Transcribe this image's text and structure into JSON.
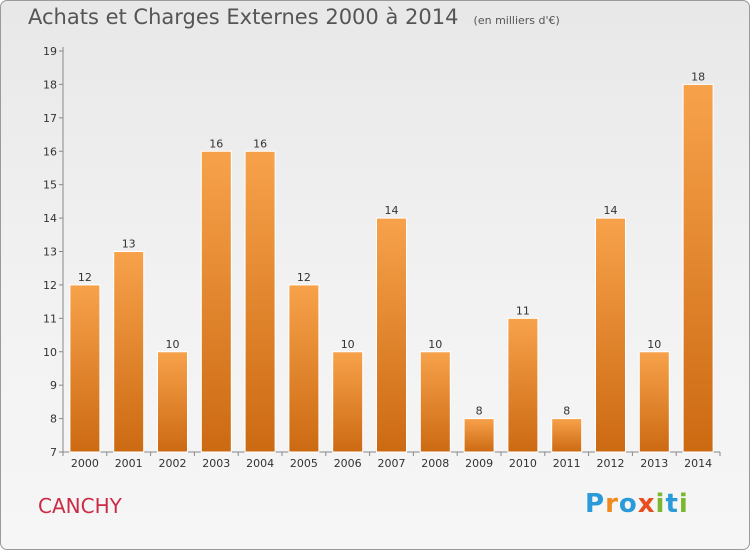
{
  "header": {
    "title": "Achats et Charges Externes 2000 à 2014",
    "subtitle": "(en milliers d'€)"
  },
  "footer": {
    "commune": "CANCHY",
    "logo": "Proxiti"
  },
  "colors": {
    "bar_top": "#f7a24b",
    "bar_bottom": "#cc6a12",
    "commune_text": "#cc2a46",
    "logo_letters": [
      "#2a9bd8",
      "#f08a1c",
      "#2a9bd8",
      "#e94e1b",
      "#7cb82f",
      "#2a9bd8",
      "#7cb82f"
    ]
  },
  "chart_data": {
    "type": "bar",
    "title": "Achats et Charges Externes 2000 à 2014",
    "subtitle": "(en milliers d'€)",
    "categories": [
      "2000",
      "2001",
      "2002",
      "2003",
      "2004",
      "2005",
      "2006",
      "2007",
      "2008",
      "2009",
      "2010",
      "2011",
      "2012",
      "2013",
      "2014"
    ],
    "values": [
      12,
      13,
      10,
      16,
      16,
      12,
      10,
      14,
      10,
      8,
      11,
      8,
      14,
      10,
      18
    ],
    "data_labels": [
      "12",
      "13",
      "10",
      "16",
      "16",
      "12",
      "10",
      "14",
      "10",
      "8",
      "11",
      "8",
      "14",
      "10",
      "18"
    ],
    "ylim": [
      7,
      19
    ],
    "yticks": [
      "7",
      "8",
      "9",
      "10",
      "11",
      "12",
      "13",
      "14",
      "15",
      "16",
      "17",
      "18",
      "19"
    ],
    "xlabel": "",
    "ylabel": "",
    "grid": false,
    "legend": "none"
  }
}
